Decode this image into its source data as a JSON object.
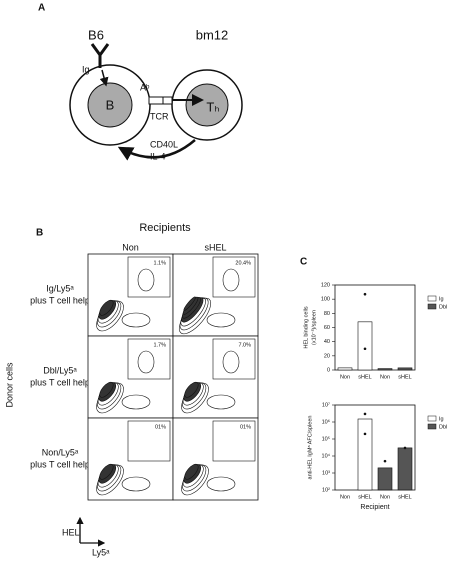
{
  "panel_labels": [
    "A",
    "B",
    "C"
  ],
  "diagram": {
    "left_strain": "B6",
    "right_strain": "bm12",
    "receptor": "Ig",
    "b_cell": "B",
    "mhc": "Aᵇ",
    "tcr": "TCR",
    "t_cell": "Tₕ",
    "signal_1": "CD40L",
    "signal_2": "IL-4"
  },
  "flow": {
    "title": "Recipients",
    "columns": [
      "Non",
      "sHEL"
    ],
    "rows": [
      [
        "Ig/Ly5ᵃ",
        "plus T cell help"
      ],
      [
        "Dbl/Ly5ᵃ",
        "plus T cell help"
      ],
      [
        "Non/Ly5ᵃ",
        "plus T cell help"
      ]
    ],
    "percentages": [
      [
        "1.1%",
        "20.4%"
      ],
      [
        "1.7%",
        "7.0%"
      ],
      [
        "01%",
        "01%"
      ]
    ],
    "y_label": "Donor cells",
    "axis_y": "HEL",
    "axis_x": "Ly5ᵃ"
  },
  "chart_data": [
    {
      "type": "bar",
      "y_label": [
        "HEL binding cells",
        "(x10⁻³)/spleen"
      ],
      "categories": [
        "Non",
        "sHEL",
        "Non",
        "sHEL"
      ],
      "series": [
        {
          "name": "Ig",
          "color": "#ffffff",
          "values": [
            3,
            68,
            null,
            null
          ],
          "dots": [
            [],
            [
              107,
              30
            ],
            [],
            []
          ]
        },
        {
          "name": "Dbl",
          "color": "#555555",
          "values": [
            null,
            null,
            2,
            3
          ],
          "dots": [
            [],
            [],
            [],
            []
          ]
        }
      ],
      "ylim": [
        0,
        120
      ],
      "yticks": [
        0,
        20,
        40,
        60,
        80,
        100,
        120
      ]
    },
    {
      "type": "bar",
      "log_scale": true,
      "y_label": [
        "anti-HEL IgMᵃ AFC/spleen"
      ],
      "x_label": "Recipient",
      "categories": [
        "Non",
        "sHEL",
        "Non",
        "sHEL"
      ],
      "series": [
        {
          "name": "Ig",
          "color": "#ffffff",
          "values": [
            null,
            1500000,
            null,
            null
          ],
          "dots": [
            [],
            [
              3000000,
              200000
            ],
            [],
            []
          ]
        },
        {
          "name": "Dbl",
          "color": "#555555",
          "values": [
            null,
            null,
            2000,
            30000
          ],
          "dots": [
            [],
            [],
            [
              5000
            ],
            [
              30000
            ]
          ]
        }
      ],
      "ylim": [
        100,
        10000000
      ],
      "yticks": [
        {
          "value": 100,
          "label": "10²"
        },
        {
          "value": 1000,
          "label": "10³"
        },
        {
          "value": 10000,
          "label": "10⁴"
        },
        {
          "value": 100000,
          "label": "10⁵"
        },
        {
          "value": 1000000,
          "label": "10⁶"
        },
        {
          "value": 10000000,
          "label": "10⁷"
        }
      ]
    }
  ]
}
